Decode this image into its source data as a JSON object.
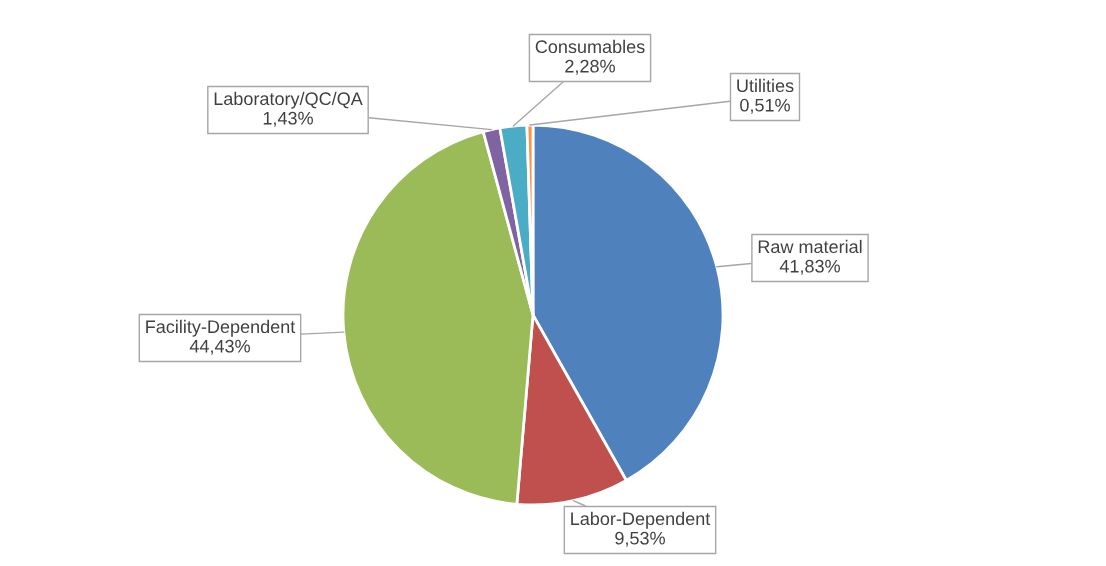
{
  "chart_data": {
    "type": "pie",
    "categories": [
      "Raw material",
      "Labor-Dependent",
      "Facility-Dependent",
      "Laboratory/QC/QA",
      "Consumables",
      "Utilities"
    ],
    "values": [
      41.83,
      9.53,
      44.43,
      1.43,
      2.28,
      0.51
    ],
    "value_labels": [
      "41,83%",
      "9,53%",
      "44,43%",
      "1,43%",
      "2,28%",
      "0,51%"
    ],
    "colors": [
      "#4f81bd",
      "#c0504d",
      "#9bbb59",
      "#8064a2",
      "#4bacc6",
      "#f79646"
    ],
    "legend": false
  }
}
